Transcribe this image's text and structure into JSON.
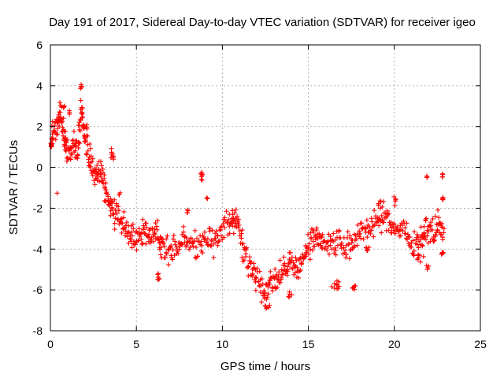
{
  "chart_data": {
    "type": "scatter",
    "title": "Day 191 of 2017, Sidereal Day-to-day VTEC variation (SDTVAR) for receiver igeo",
    "xlabel": "GPS time / hours",
    "ylabel": "SDTVAR / TECUs",
    "xlim": [
      0,
      25
    ],
    "ylim": [
      -8,
      6
    ],
    "xticks": [
      "0",
      "5",
      "10",
      "15",
      "20",
      "25"
    ],
    "yticks": [
      "-8",
      "-6",
      "-4",
      "-2",
      "0",
      "2",
      "4",
      "6"
    ],
    "grid": true,
    "marker": "+",
    "series": [
      {
        "name": "SDTVAR",
        "color": "#ff0000",
        "trend": [
          [
            0.0,
            1.4
          ],
          [
            0.3,
            1.8
          ],
          [
            0.6,
            2.8
          ],
          [
            0.8,
            1.5
          ],
          [
            1.0,
            0.8
          ],
          [
            1.3,
            1.2
          ],
          [
            1.6,
            0.6
          ],
          [
            1.8,
            3.0
          ],
          [
            2.0,
            1.3
          ],
          [
            2.3,
            0.5
          ],
          [
            2.6,
            -0.5
          ],
          [
            2.9,
            -0.2
          ],
          [
            3.2,
            -1.0
          ],
          [
            3.5,
            -1.8
          ],
          [
            3.8,
            -2.3
          ],
          [
            4.2,
            -2.8
          ],
          [
            4.6,
            -3.3
          ],
          [
            5.0,
            -3.5
          ],
          [
            5.4,
            -3.2
          ],
          [
            5.8,
            -3.6
          ],
          [
            6.2,
            -3.0
          ],
          [
            6.5,
            -3.9
          ],
          [
            7.0,
            -4.3
          ],
          [
            7.5,
            -3.8
          ],
          [
            8.0,
            -3.5
          ],
          [
            8.5,
            -3.8
          ],
          [
            9.0,
            -3.3
          ],
          [
            9.5,
            -3.6
          ],
          [
            10.0,
            -3.0
          ],
          [
            10.5,
            -2.6
          ],
          [
            10.8,
            -2.4
          ],
          [
            11.2,
            -3.8
          ],
          [
            11.6,
            -5.0
          ],
          [
            12.0,
            -5.4
          ],
          [
            12.4,
            -6.0
          ],
          [
            12.8,
            -5.8
          ],
          [
            13.2,
            -5.4
          ],
          [
            13.6,
            -5.0
          ],
          [
            14.0,
            -4.5
          ],
          [
            14.4,
            -5.1
          ],
          [
            14.8,
            -4.2
          ],
          [
            15.2,
            -3.6
          ],
          [
            15.6,
            -3.5
          ],
          [
            16.0,
            -3.8
          ],
          [
            16.5,
            -3.4
          ],
          [
            17.0,
            -4.0
          ],
          [
            17.5,
            -3.6
          ],
          [
            18.0,
            -3.2
          ],
          [
            18.5,
            -2.9
          ],
          [
            19.0,
            -2.6
          ],
          [
            19.5,
            -2.5
          ],
          [
            20.0,
            -3.1
          ],
          [
            20.5,
            -3.0
          ],
          [
            21.0,
            -3.8
          ],
          [
            21.5,
            -3.7
          ],
          [
            21.8,
            -2.9
          ],
          [
            22.2,
            -3.2
          ],
          [
            22.6,
            -2.7
          ],
          [
            22.9,
            -3.6
          ]
        ],
        "clusters": [
          [
            0.05,
            1.2,
            0.1,
            0.4,
            8
          ],
          [
            0.4,
            -1.2,
            0.03,
            0.1,
            1
          ],
          [
            0.5,
            2.4,
            0.1,
            0.2,
            6
          ],
          [
            0.8,
            3.0,
            0.1,
            0.15,
            4
          ],
          [
            1.1,
            2.7,
            0.05,
            0.15,
            3
          ],
          [
            1.8,
            3.9,
            0.1,
            0.25,
            6
          ],
          [
            2.1,
            2.0,
            0.05,
            0.2,
            4
          ],
          [
            3.6,
            0.6,
            0.15,
            0.6,
            8
          ],
          [
            4.0,
            -1.3,
            0.1,
            0.2,
            3
          ],
          [
            6.3,
            -5.4,
            0.1,
            0.4,
            6
          ],
          [
            8.0,
            -2.2,
            0.1,
            0.3,
            4
          ],
          [
            8.8,
            -0.5,
            0.15,
            0.4,
            8
          ],
          [
            9.1,
            -1.5,
            0.05,
            0.1,
            3
          ],
          [
            12.6,
            -6.8,
            0.2,
            0.2,
            6
          ],
          [
            13.9,
            -6.2,
            0.3,
            0.2,
            5
          ],
          [
            16.6,
            -5.8,
            0.4,
            0.3,
            10
          ],
          [
            17.6,
            -5.9,
            0.2,
            0.2,
            6
          ],
          [
            18.4,
            -4.0,
            0.3,
            0.2,
            6
          ],
          [
            19.2,
            -1.8,
            0.2,
            0.3,
            6
          ],
          [
            20.0,
            -1.6,
            0.1,
            0.3,
            5
          ],
          [
            21.5,
            -4.4,
            0.3,
            0.3,
            6
          ],
          [
            21.9,
            -4.9,
            0.1,
            0.2,
            4
          ],
          [
            21.9,
            -0.5,
            0.05,
            0.1,
            3
          ],
          [
            22.8,
            -0.4,
            0.05,
            0.2,
            4
          ],
          [
            22.8,
            -1.5,
            0.05,
            0.2,
            5
          ],
          [
            22.8,
            -4.2,
            0.1,
            0.1,
            4
          ]
        ]
      }
    ]
  }
}
